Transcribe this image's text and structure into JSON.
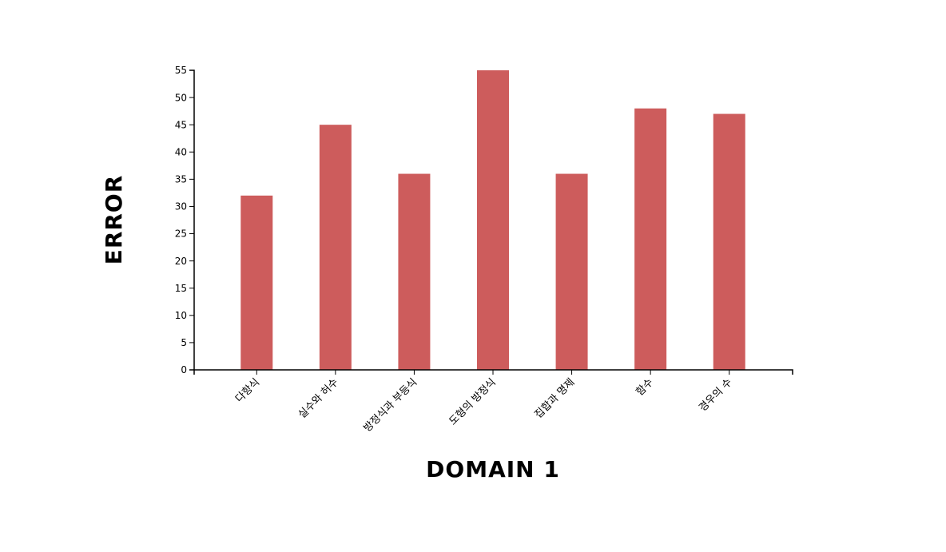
{
  "chart_data": {
    "type": "bar",
    "title": "",
    "xlabel": "DOMAIN 1",
    "ylabel": "ERROR",
    "categories": [
      "다항식",
      "실수와 허수",
      "방정식과 부등식",
      "도형의 방정식",
      "집합과 명제",
      "함수",
      "경우의 수"
    ],
    "values": [
      32,
      45,
      36,
      55,
      36,
      48,
      47
    ],
    "ylim": [
      0,
      55
    ],
    "yticks": [
      0,
      5,
      10,
      15,
      20,
      25,
      30,
      35,
      40,
      45,
      50,
      55
    ],
    "grid": false,
    "bar_color": "#cd5c5c",
    "axis_color": "#000000"
  }
}
